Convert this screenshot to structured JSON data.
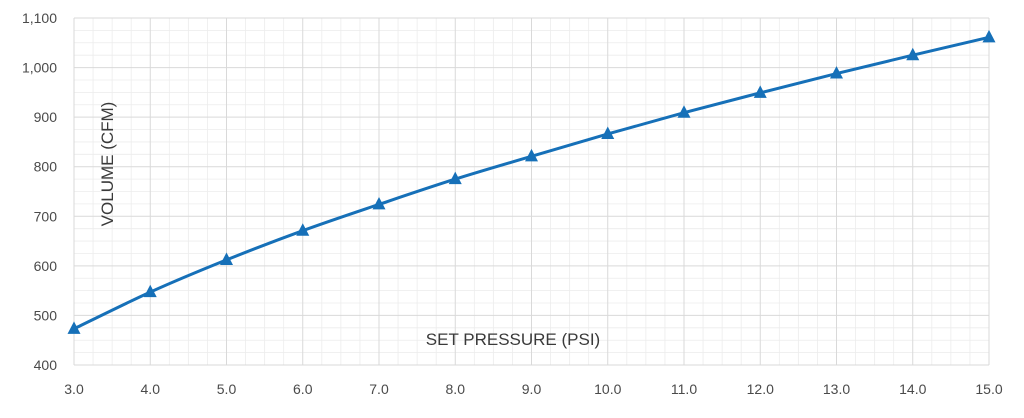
{
  "chart_data": {
    "type": "line",
    "title": "",
    "xlabel": "SET PRESSURE (PSI)",
    "ylabel": "VOLUME  (CFM)",
    "xlim": [
      3.0,
      15.0
    ],
    "ylim": [
      400,
      1100
    ],
    "x_ticks": [
      "3.0",
      "4.0",
      "5.0",
      "6.0",
      "7.0",
      "8.0",
      "9.0",
      "10.0",
      "11.0",
      "12.0",
      "13.0",
      "14.0",
      "15.0"
    ],
    "y_ticks": [
      "400",
      "500",
      "600",
      "700",
      "800",
      "900",
      "1,000",
      "1,100"
    ],
    "grid": true,
    "series": [
      {
        "color": "#1670b8",
        "marker": "triangle",
        "x": [
          3,
          4,
          5,
          6,
          7,
          8,
          9,
          10,
          11,
          12,
          13,
          14,
          15
        ],
        "y": [
          473,
          547,
          612,
          671,
          724,
          775,
          821,
          866,
          909,
          949,
          988,
          1025,
          1061
        ]
      }
    ]
  }
}
